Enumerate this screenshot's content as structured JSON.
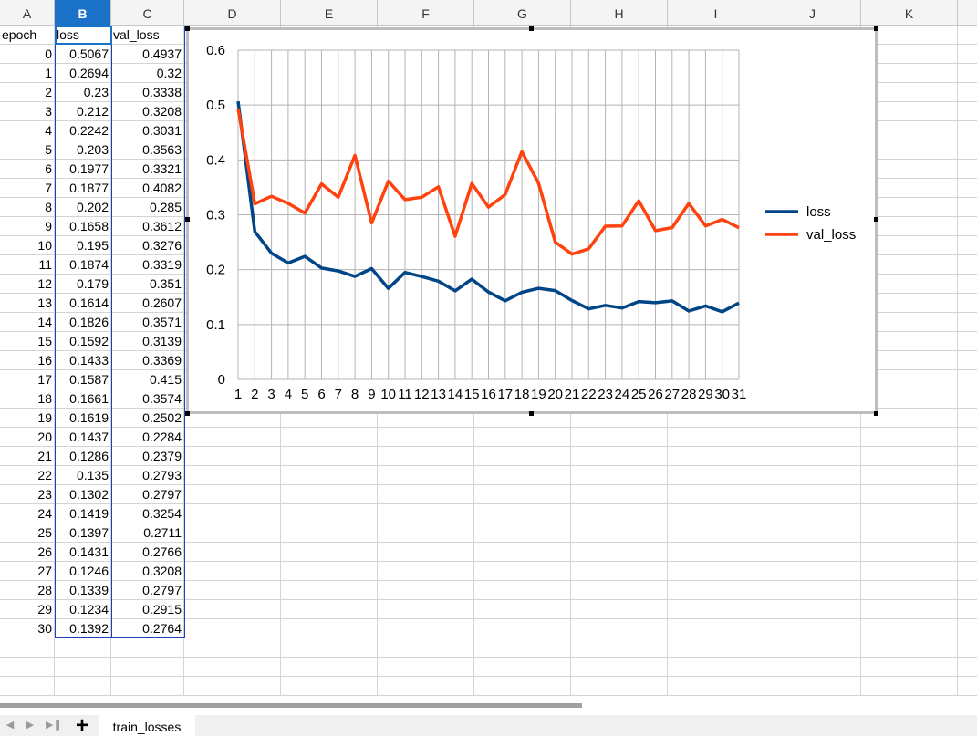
{
  "columns": [
    "A",
    "B",
    "C",
    "D",
    "E",
    "F",
    "G",
    "H",
    "I",
    "J",
    "K"
  ],
  "active_column": "B",
  "headers": {
    "epoch": "epoch",
    "loss": "loss",
    "val_loss": "val_loss"
  },
  "rows": [
    {
      "epoch": "0",
      "loss": "0.5067",
      "val_loss": "0.4937"
    },
    {
      "epoch": "1",
      "loss": "0.2694",
      "val_loss": "0.32"
    },
    {
      "epoch": "2",
      "loss": "0.23",
      "val_loss": "0.3338"
    },
    {
      "epoch": "3",
      "loss": "0.212",
      "val_loss": "0.3208"
    },
    {
      "epoch": "4",
      "loss": "0.2242",
      "val_loss": "0.3031"
    },
    {
      "epoch": "5",
      "loss": "0.203",
      "val_loss": "0.3563"
    },
    {
      "epoch": "6",
      "loss": "0.1977",
      "val_loss": "0.3321"
    },
    {
      "epoch": "7",
      "loss": "0.1877",
      "val_loss": "0.4082"
    },
    {
      "epoch": "8",
      "loss": "0.202",
      "val_loss": "0.285"
    },
    {
      "epoch": "9",
      "loss": "0.1658",
      "val_loss": "0.3612"
    },
    {
      "epoch": "10",
      "loss": "0.195",
      "val_loss": "0.3276"
    },
    {
      "epoch": "11",
      "loss": "0.1874",
      "val_loss": "0.3319"
    },
    {
      "epoch": "12",
      "loss": "0.179",
      "val_loss": "0.351"
    },
    {
      "epoch": "13",
      "loss": "0.1614",
      "val_loss": "0.2607"
    },
    {
      "epoch": "14",
      "loss": "0.1826",
      "val_loss": "0.3571"
    },
    {
      "epoch": "15",
      "loss": "0.1592",
      "val_loss": "0.3139"
    },
    {
      "epoch": "16",
      "loss": "0.1433",
      "val_loss": "0.3369"
    },
    {
      "epoch": "17",
      "loss": "0.1587",
      "val_loss": "0.415"
    },
    {
      "epoch": "18",
      "loss": "0.1661",
      "val_loss": "0.3574"
    },
    {
      "epoch": "19",
      "loss": "0.1619",
      "val_loss": "0.2502"
    },
    {
      "epoch": "20",
      "loss": "0.1437",
      "val_loss": "0.2284"
    },
    {
      "epoch": "21",
      "loss": "0.1286",
      "val_loss": "0.2379"
    },
    {
      "epoch": "22",
      "loss": "0.135",
      "val_loss": "0.2793"
    },
    {
      "epoch": "23",
      "loss": "0.1302",
      "val_loss": "0.2797"
    },
    {
      "epoch": "24",
      "loss": "0.1419",
      "val_loss": "0.3254"
    },
    {
      "epoch": "25",
      "loss": "0.1397",
      "val_loss": "0.2711"
    },
    {
      "epoch": "26",
      "loss": "0.1431",
      "val_loss": "0.2766"
    },
    {
      "epoch": "27",
      "loss": "0.1246",
      "val_loss": "0.3208"
    },
    {
      "epoch": "28",
      "loss": "0.1339",
      "val_loss": "0.2797"
    },
    {
      "epoch": "29",
      "loss": "0.1234",
      "val_loss": "0.2915"
    },
    {
      "epoch": "30",
      "loss": "0.1392",
      "val_loss": "0.2764"
    }
  ],
  "sheet_tabs": [
    "train_losses"
  ],
  "chart_data": {
    "type": "line",
    "categories": [
      "1",
      "2",
      "3",
      "4",
      "5",
      "6",
      "7",
      "8",
      "9",
      "10",
      "11",
      "12",
      "13",
      "14",
      "15",
      "16",
      "17",
      "18",
      "19",
      "20",
      "21",
      "22",
      "23",
      "24",
      "25",
      "26",
      "27",
      "28",
      "29",
      "30",
      "31"
    ],
    "series": [
      {
        "name": "loss",
        "color": "#004586",
        "values": [
          0.5067,
          0.2694,
          0.23,
          0.212,
          0.2242,
          0.203,
          0.1977,
          0.1877,
          0.202,
          0.1658,
          0.195,
          0.1874,
          0.179,
          0.1614,
          0.1826,
          0.1592,
          0.1433,
          0.1587,
          0.1661,
          0.1619,
          0.1437,
          0.1286,
          0.135,
          0.1302,
          0.1419,
          0.1397,
          0.1431,
          0.1246,
          0.1339,
          0.1234,
          0.1392
        ]
      },
      {
        "name": "val_loss",
        "color": "#ff420e",
        "values": [
          0.4937,
          0.32,
          0.3338,
          0.3208,
          0.3031,
          0.3563,
          0.3321,
          0.4082,
          0.285,
          0.3612,
          0.3276,
          0.3319,
          0.351,
          0.2607,
          0.3571,
          0.3139,
          0.3369,
          0.415,
          0.3574,
          0.2502,
          0.2284,
          0.2379,
          0.2793,
          0.2797,
          0.3254,
          0.2711,
          0.2766,
          0.3208,
          0.2797,
          0.2915,
          0.2764
        ]
      }
    ],
    "ylim": [
      0,
      0.6
    ],
    "yticks": [
      "0",
      "0.1",
      "0.2",
      "0.3",
      "0.4",
      "0.5",
      "0.6"
    ],
    "grid": true,
    "legend": "right"
  }
}
